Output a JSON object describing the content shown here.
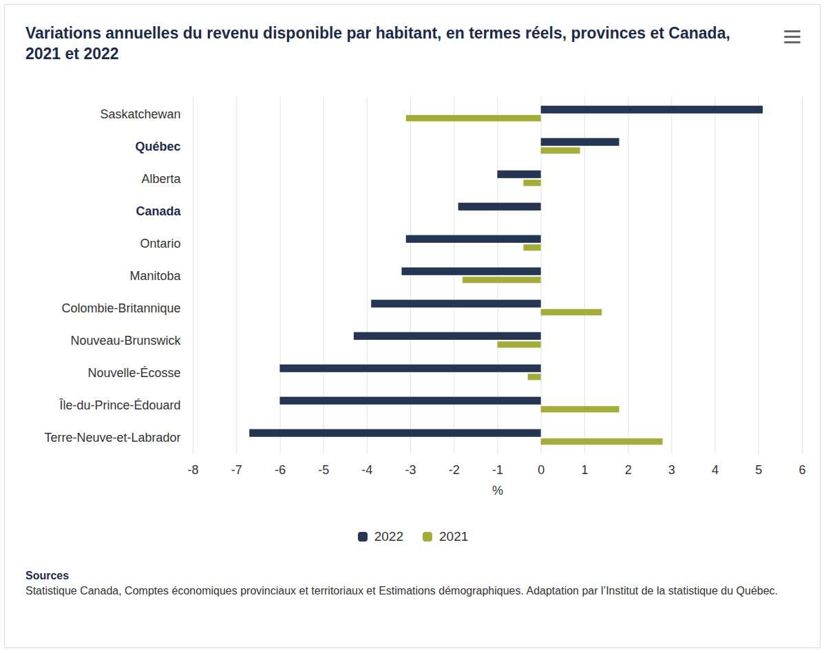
{
  "chart_data": {
    "type": "bar",
    "orientation": "horizontal",
    "title": "Variations annuelles du revenu disponible par habitant, en termes réels, provinces et Canada, 2021 et 2022",
    "x_label": "%",
    "categories": [
      "Saskatchewan",
      "Québec",
      "Alberta",
      "Canada",
      "Ontario",
      "Manitoba",
      "Colombie-Britannique",
      "Nouveau-Brunswick",
      "Nouvelle-Écosse",
      "Île-du-Prince-Édouard",
      "Terre-Neuve-et-Labrador"
    ],
    "series": [
      {
        "name": "2022",
        "color": "#253654",
        "values": [
          5.1,
          1.8,
          -1.0,
          -1.9,
          -3.1,
          -3.2,
          -3.9,
          -4.3,
          -6.0,
          -6.0,
          -6.7
        ]
      },
      {
        "name": "2021",
        "color": "#a5ad3a",
        "values": [
          -3.1,
          0.9,
          -0.4,
          0.0,
          -0.4,
          -1.8,
          1.4,
          -1.0,
          -0.3,
          1.8,
          2.8
        ]
      }
    ],
    "xlim": [
      -8,
      6
    ],
    "xticks": [
      -8,
      -7,
      -6,
      -5,
      -4,
      -3,
      -2,
      -1,
      0,
      1,
      2,
      3,
      4,
      5,
      6
    ],
    "grid": true,
    "legend": "bottom",
    "data_labels": false,
    "source_title": "Sources",
    "source": "Statistique Canada, Comptes économiques provinciaux et territoriaux et Estimations démographiques. Adaptation par l’Institut de la statistique du Québec."
  }
}
